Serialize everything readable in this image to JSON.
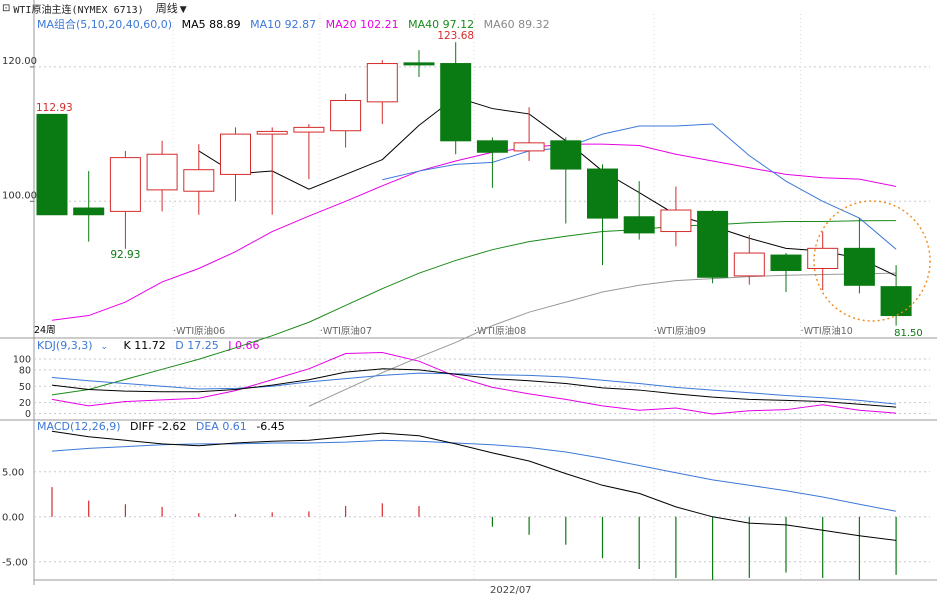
{
  "header": {
    "menu_icon": "window-icon",
    "title": "WTI原油主连(NYMEX 6713)",
    "period": "周线"
  },
  "ma_legend": {
    "name": "MA组合(5,10,20,40,60,0)",
    "items": [
      {
        "label": "MA5 88.89",
        "color": "#000000"
      },
      {
        "label": "MA10 92.87",
        "color": "#3c78d8"
      },
      {
        "label": "MA20 102.21",
        "color": "#e600e6"
      },
      {
        "label": "MA40 97.12",
        "color": "#1a8a1a"
      },
      {
        "label": "MA60 89.32",
        "color": "#888888"
      }
    ],
    "name_color": "#3c78d8"
  },
  "kdj_legend": {
    "name": "KDJ(9,3,3)",
    "items": [
      {
        "label": "K 11.72",
        "color": "#000000"
      },
      {
        "label": "D 17.25",
        "color": "#3c78d8"
      },
      {
        "label": "J 0.66",
        "color": "#e600e6"
      }
    ]
  },
  "macd_legend": {
    "name": "MACD(12,26,9)",
    "items": [
      {
        "label": "DIFF -2.62",
        "color": "#000000"
      },
      {
        "label": "DEA 0.61",
        "color": "#3c78d8"
      },
      {
        "label": "-6.45",
        "color": "#000000"
      }
    ]
  },
  "chart_data": {
    "type": "candlestick",
    "price_axis": {
      "ticks": [
        100,
        120
      ],
      "tick_labels": [
        "100.00",
        "120.00"
      ],
      "ylim": [
        80,
        125
      ]
    },
    "week_labels": [
      "WTI原油06",
      "WTI原油07",
      "WTI原油08",
      "WTI原油09",
      "WTI原油10",
      "81.50"
    ],
    "period_label": "24周",
    "bottom_label": "2022/07",
    "annotations": {
      "high": "123.68",
      "open_high": "112.93",
      "low_label": "92.93",
      "last_low": "81.50"
    },
    "candles": [
      {
        "o": 112.93,
        "c": 98.0,
        "h": 112.93,
        "l": 98.0
      },
      {
        "o": 99.0,
        "c": 98.0,
        "h": 104.5,
        "l": 94.0
      },
      {
        "o": 98.5,
        "c": 106.5,
        "h": 107.5,
        "l": 92.93
      },
      {
        "o": 101.7,
        "c": 107.0,
        "h": 109.0,
        "l": 98.5
      },
      {
        "o": 101.5,
        "c": 104.7,
        "h": 108.5,
        "l": 98.0
      },
      {
        "o": 104.0,
        "c": 110.0,
        "h": 111.0,
        "l": 100.0
      },
      {
        "o": 110.0,
        "c": 110.4,
        "h": 111.0,
        "l": 98.0
      },
      {
        "o": 110.3,
        "c": 111.0,
        "h": 111.5,
        "l": 103.3
      },
      {
        "o": 110.5,
        "c": 115.0,
        "h": 116.0,
        "l": 108.0
      },
      {
        "o": 114.8,
        "c": 120.5,
        "h": 121.0,
        "l": 111.5
      },
      {
        "o": 120.6,
        "c": 120.3,
        "h": 122.5,
        "l": 118.5
      },
      {
        "o": 120.5,
        "c": 109.0,
        "h": 123.68,
        "l": 107.0
      },
      {
        "o": 109.0,
        "c": 107.3,
        "h": 109.5,
        "l": 102.0
      },
      {
        "o": 107.5,
        "c": 108.7,
        "h": 114.0,
        "l": 106.0
      },
      {
        "o": 109.0,
        "c": 104.8,
        "h": 109.5,
        "l": 96.7
      },
      {
        "o": 104.8,
        "c": 97.5,
        "h": 105.5,
        "l": 90.5
      },
      {
        "o": 97.7,
        "c": 95.3,
        "h": 103.0,
        "l": 94.3
      },
      {
        "o": 95.5,
        "c": 98.7,
        "h": 102.2,
        "l": 93.3
      },
      {
        "o": 98.5,
        "c": 88.7,
        "h": 98.7,
        "l": 87.8
      },
      {
        "o": 88.9,
        "c": 92.3,
        "h": 95.0,
        "l": 87.6
      },
      {
        "o": 92.0,
        "c": 89.7,
        "h": 92.3,
        "l": 86.5
      },
      {
        "o": 90.0,
        "c": 93.0,
        "h": 95.5,
        "l": 86.8
      },
      {
        "o": 93.0,
        "c": 87.5,
        "h": 97.5,
        "l": 86.3
      },
      {
        "o": 87.3,
        "c": 83.0,
        "h": 90.5,
        "l": 81.5
      }
    ],
    "ma5": [
      null,
      null,
      null,
      null,
      107.5,
      104.1,
      104.5,
      101.8,
      104.0,
      106.2,
      111.3,
      115.5,
      113.8,
      113.0,
      109.0,
      104.5,
      101.3,
      98.0,
      96.3,
      94.5,
      93.0,
      92.6,
      91.5,
      88.9
    ],
    "ma10": [
      null,
      null,
      null,
      null,
      null,
      null,
      null,
      null,
      null,
      103.2,
      104.5,
      105.5,
      105.8,
      107.5,
      108.0,
      110.0,
      111.2,
      111.2,
      111.5,
      106.8,
      103.0,
      100.0,
      97.5,
      92.87
    ],
    "ma20": [
      82.3,
      83.0,
      85.0,
      88.0,
      90.0,
      92.5,
      95.5,
      97.8,
      100.0,
      102.3,
      104.5,
      106.0,
      107.3,
      108.0,
      108.5,
      108.5,
      108.3,
      107.0,
      106.0,
      105.0,
      104.0,
      103.5,
      103.3,
      102.21
    ],
    "ma40": [
      71.2,
      72.0,
      73.5,
      75.0,
      76.5,
      78.2,
      80.0,
      82.0,
      84.5,
      87.0,
      89.3,
      91.2,
      92.8,
      94.0,
      94.8,
      95.5,
      95.8,
      96.3,
      96.5,
      96.8,
      97.0,
      97.0,
      97.1,
      97.12
    ],
    "ma60": [
      null,
      null,
      null,
      null,
      null,
      null,
      null,
      69.5,
      72.0,
      74.5,
      76.8,
      79.0,
      81.5,
      83.5,
      85.0,
      86.5,
      87.5,
      88.2,
      88.5,
      88.8,
      89.0,
      89.1,
      89.2,
      89.32
    ],
    "kdj": {
      "yticks": [
        0,
        20,
        50,
        80,
        100
      ],
      "k": [
        52,
        44,
        41,
        40,
        40,
        44,
        52,
        62,
        76,
        82,
        80,
        72,
        64,
        60,
        55,
        47,
        43,
        36,
        30,
        26,
        24,
        22,
        17,
        11.72
      ],
      "d": [
        66,
        60,
        55,
        50,
        45,
        46,
        50,
        58,
        64,
        70,
        74,
        73,
        71,
        70,
        67,
        61,
        55,
        48,
        43,
        38,
        33,
        29,
        24,
        17.25
      ],
      "j": [
        26,
        14,
        22,
        25,
        28,
        42,
        62,
        82,
        110,
        112,
        96,
        68,
        48,
        36,
        26,
        14,
        6,
        10,
        -1,
        5,
        7,
        16,
        6,
        0.66
      ]
    },
    "macd": {
      "yticks": [
        -5.0,
        0.0,
        5.0
      ],
      "tick_labels": [
        "-5.00",
        "0.00",
        "5.00"
      ],
      "diff": [
        9.5,
        8.9,
        8.5,
        8.1,
        7.9,
        8.2,
        8.4,
        8.5,
        8.9,
        9.3,
        9.0,
        8.1,
        7.1,
        6.2,
        4.8,
        3.5,
        2.6,
        1.1,
        0.0,
        -0.7,
        -0.9,
        -1.5,
        -2.1,
        -2.62
      ],
      "dea": [
        7.3,
        7.6,
        7.8,
        8.0,
        8.1,
        8.1,
        8.2,
        8.2,
        8.3,
        8.5,
        8.4,
        8.2,
        8.0,
        7.7,
        7.2,
        6.5,
        5.7,
        4.9,
        4.1,
        3.5,
        2.9,
        2.2,
        1.4,
        0.61
      ],
      "hist": [
        3.3,
        1.8,
        1.4,
        1.1,
        0.4,
        0.3,
        0.5,
        0.6,
        1.2,
        1.5,
        1.2,
        0.0,
        -1.1,
        -2.0,
        -3.1,
        -4.6,
        -5.8,
        -6.8,
        -7.0,
        -6.8,
        -6.2,
        -6.8,
        -7.0,
        -6.45
      ]
    }
  },
  "colors": {
    "up": "#d62b2b",
    "down": "#0a7a12",
    "grid": "#c8c8d0",
    "axis": "#555555",
    "circle": "#f08a1c"
  }
}
